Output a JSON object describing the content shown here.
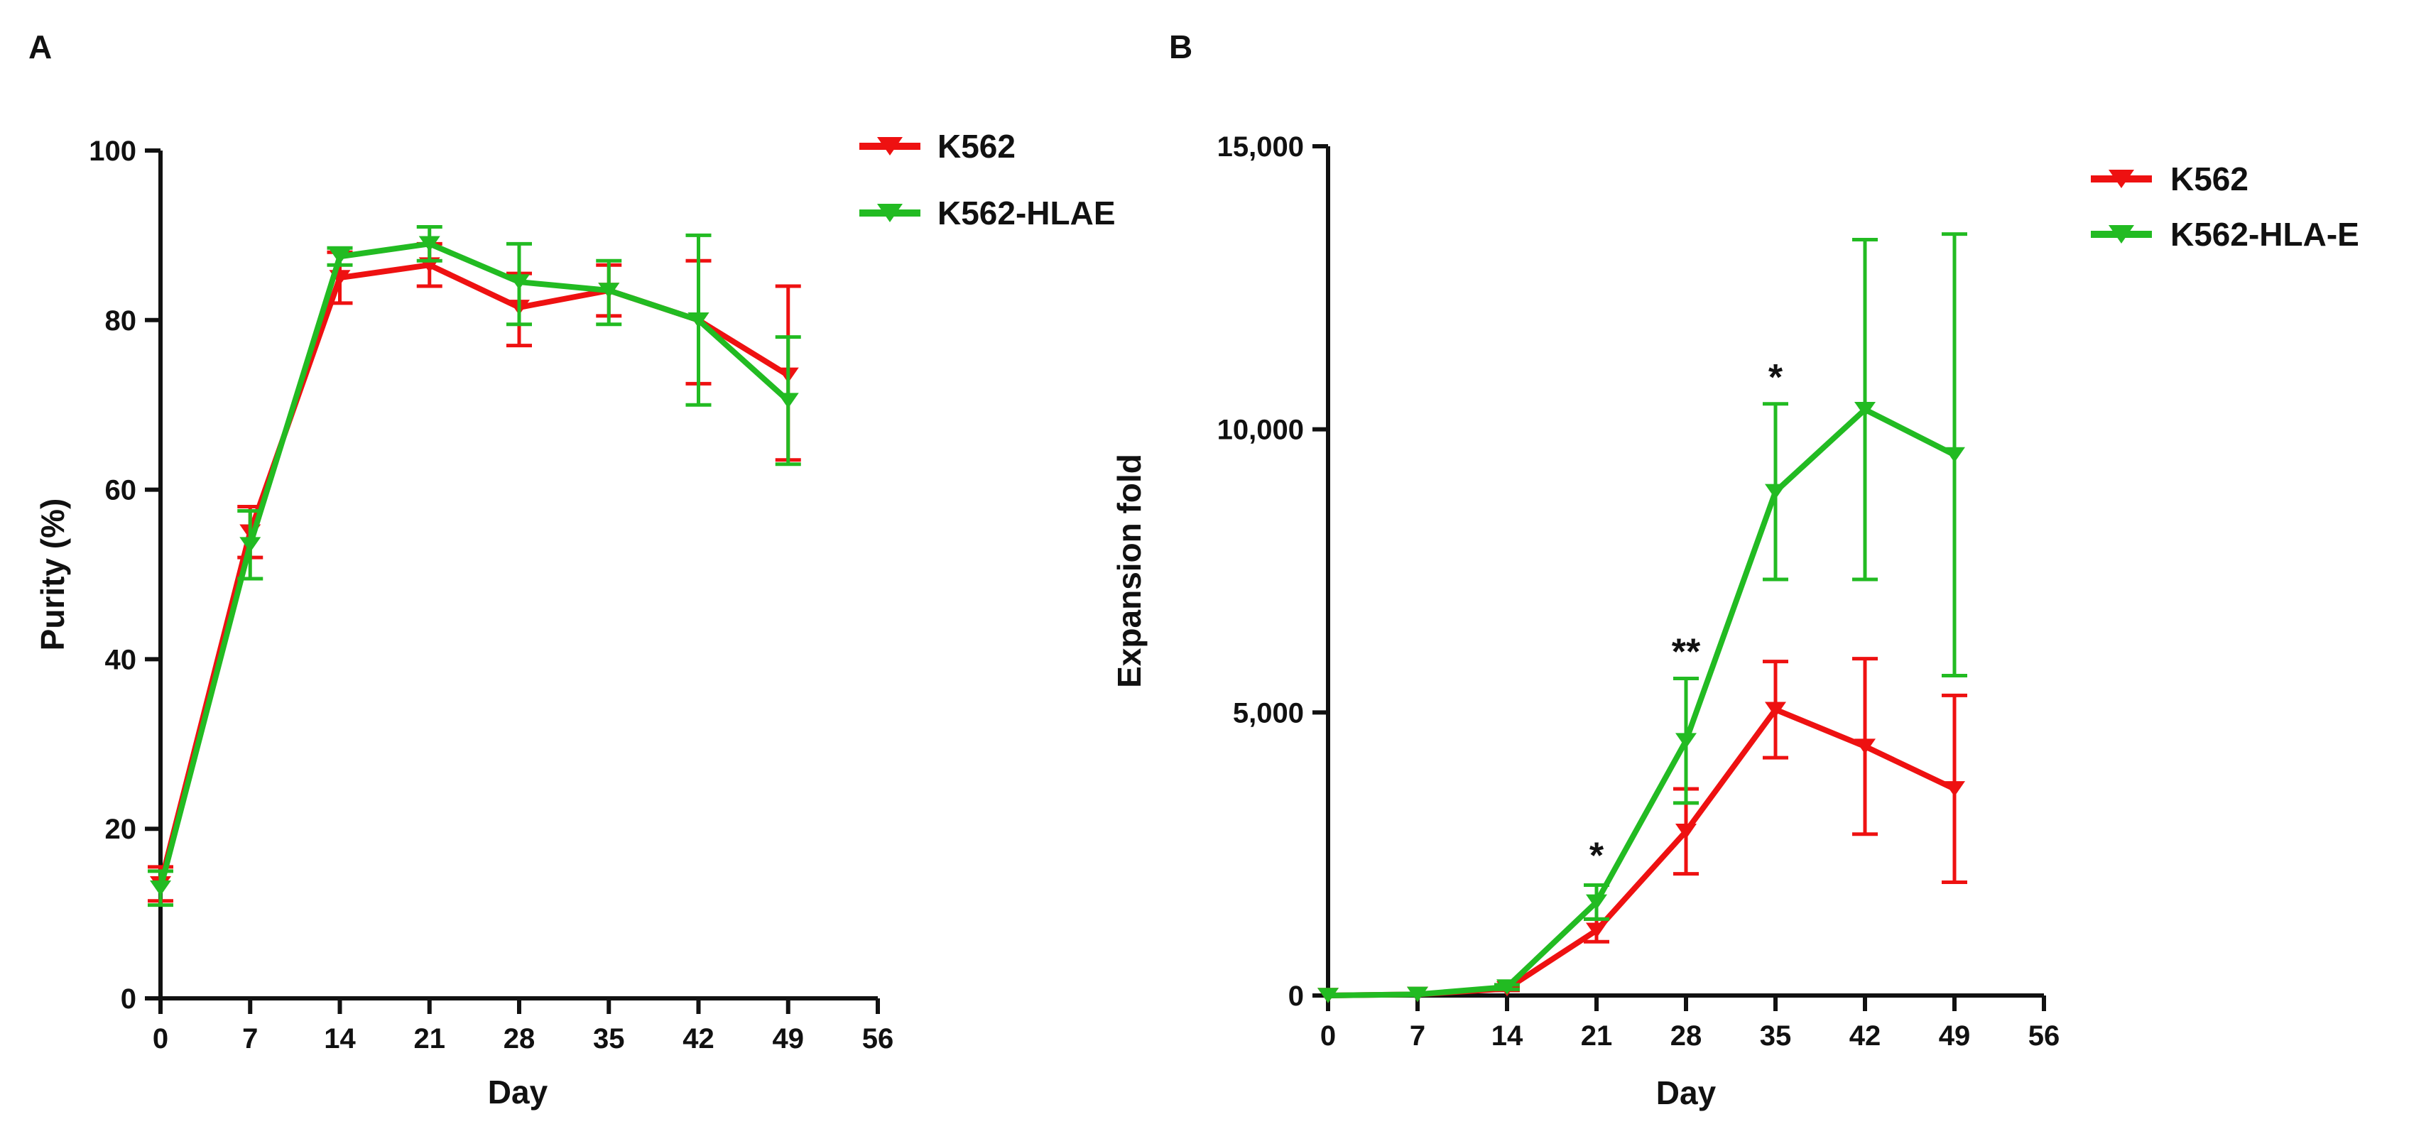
{
  "chart_data": [
    {
      "panel_label": "A",
      "type": "line",
      "title": "",
      "xlabel": "Day",
      "ylabel": "Purity (%)",
      "xlim": [
        0,
        56
      ],
      "ylim": [
        0,
        100
      ],
      "x_ticks": [
        "0",
        "7",
        "14",
        "21",
        "28",
        "35",
        "42",
        "49",
        "56"
      ],
      "y_ticks": [
        "0",
        "20",
        "40",
        "60",
        "80",
        "100"
      ],
      "legend_position": "top-right",
      "x": [
        0,
        7,
        14,
        21,
        28,
        35,
        42,
        49
      ],
      "series": [
        {
          "name": "K562",
          "color": "#ee1111",
          "values": [
            13.5,
            55,
            85,
            86.5,
            81.5,
            83.5,
            80,
            73.5
          ],
          "err_low": [
            2,
            3,
            3,
            2.5,
            4.5,
            3,
            7.5,
            10
          ],
          "err_high": [
            2,
            3,
            3,
            2.5,
            4,
            3,
            7,
            10.5
          ]
        },
        {
          "name": "K562-HLAE",
          "color": "#22bb22",
          "values": [
            13,
            53.5,
            87.5,
            89,
            84.5,
            83.5,
            80,
            70.5
          ],
          "err_low": [
            2,
            4,
            1,
            2,
            5,
            4,
            10,
            7.5
          ],
          "err_high": [
            2,
            4,
            1,
            2,
            4.5,
            3.5,
            10,
            7.5
          ]
        }
      ],
      "annotations": []
    },
    {
      "panel_label": "B",
      "type": "line",
      "title": "",
      "xlabel": "Day",
      "ylabel": "Expansion fold",
      "xlim": [
        0,
        56
      ],
      "ylim": [
        0,
        15000
      ],
      "x_ticks": [
        "0",
        "7",
        "14",
        "21",
        "28",
        "35",
        "42",
        "49",
        "56"
      ],
      "y_ticks": [
        "0",
        "5,000",
        "10,000",
        "15,000"
      ],
      "legend_position": "top-right",
      "x": [
        0,
        7,
        14,
        21,
        28,
        35,
        42,
        49
      ],
      "series": [
        {
          "name": "K562",
          "color": "#ee1111",
          "values": [
            0,
            20,
            120,
            1150,
            2900,
            5050,
            4400,
            3650
          ],
          "err_low": [
            0,
            0,
            30,
            200,
            750,
            850,
            1550,
            1650
          ],
          "err_high": [
            0,
            0,
            30,
            200,
            750,
            850,
            1550,
            1650
          ]
        },
        {
          "name": "K562-HLA-E",
          "color": "#22bb22",
          "values": [
            0,
            20,
            150,
            1650,
            4500,
            8900,
            10350,
            9550
          ],
          "err_low": [
            0,
            0,
            40,
            300,
            1100,
            1550,
            3000,
            3900
          ],
          "err_high": [
            0,
            0,
            40,
            300,
            1100,
            1550,
            3000,
            3900
          ]
        }
      ],
      "annotations": [
        {
          "text": "*",
          "x": 21,
          "y": 2250
        },
        {
          "text": "**",
          "x": 28,
          "y": 5850
        },
        {
          "text": "*",
          "x": 35,
          "y": 10700
        }
      ]
    }
  ]
}
